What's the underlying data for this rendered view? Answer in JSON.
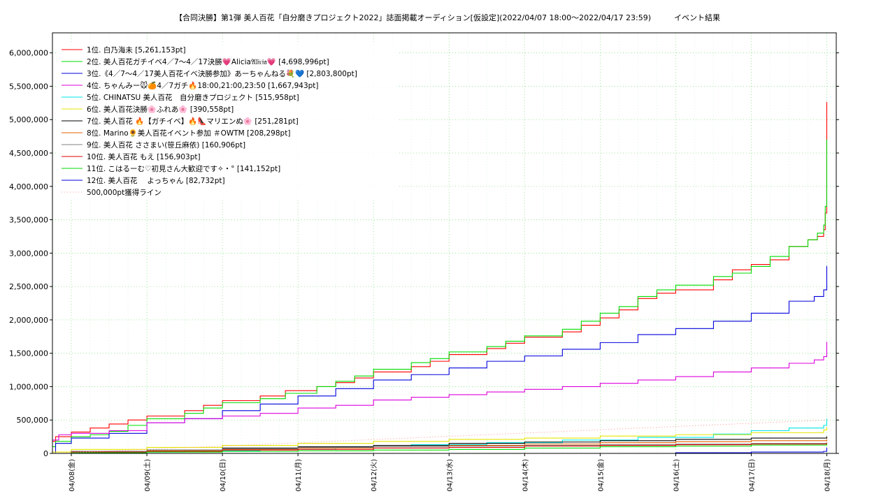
{
  "chart_data": {
    "type": "line",
    "title": "【合同決勝】第1弾 美人百花「自分磨きプロジェクト2022」誌面掲載オーディション[仮設定](2022/04/07 18:00〜2022/04/17 23:59)　　　イベント結果",
    "xlabel": "",
    "ylabel": "",
    "ylim": [
      0,
      6300000
    ],
    "xlim": [
      "04/07 18:00",
      "04/18 03:00"
    ],
    "grid": true,
    "legend_position": "top-left",
    "x_tick_labels": [
      "04/08(金)",
      "04/09(土)",
      "04/10(日)",
      "04/11(月)",
      "04/12(火)",
      "04/13(水)",
      "04/14(木)",
      "04/15(金)",
      "04/16(土)",
      "04/17(日)",
      "04/18(月)"
    ],
    "y_tick_labels": [
      "0",
      "500,000",
      "1,000,000",
      "1,500,000",
      "2,000,000",
      "2,500,000",
      "3,000,000",
      "3,500,000",
      "4,000,000",
      "4,500,000",
      "5,000,000",
      "5,500,000",
      "6,000,000"
    ],
    "y_ticks": [
      0,
      500000,
      1000000,
      1500000,
      2000000,
      2500000,
      3000000,
      3500000,
      4000000,
      4500000,
      5000000,
      5500000,
      6000000
    ],
    "x_days_start": "04/08",
    "series": [
      {
        "name": "1位. 白乃海未 [5,261,153pt]",
        "color": "#ff0000",
        "style": "solid",
        "x": [
          "04/07 18:00",
          "04/07 19:00",
          "04/08 00:00",
          "04/08 06:00",
          "04/08 12:00",
          "04/08 18:00",
          "04/09 00:00",
          "04/09 12:00",
          "04/09 18:00",
          "04/10 00:00",
          "04/10 12:00",
          "04/10 20:00",
          "04/11 06:00",
          "04/11 12:00",
          "04/11 18:00",
          "04/12 00:00",
          "04/12 12:00",
          "04/12 18:00",
          "04/13 00:00",
          "04/13 12:00",
          "04/13 18:00",
          "04/14 00:00",
          "04/14 12:00",
          "04/14 18:00",
          "04/15 00:00",
          "04/15 06:00",
          "04/15 12:00",
          "04/15 18:00",
          "04/16 00:00",
          "04/16 12:00",
          "04/16 18:00",
          "04/17 00:00",
          "04/17 06:00",
          "04/17 12:00",
          "04/17 18:00",
          "04/17 21:00",
          "04/17 23:00",
          "04/17 23:30",
          "04/17 23:59",
          "04/18 00:00"
        ],
        "y": [
          180000,
          250000,
          320000,
          380000,
          440000,
          500000,
          560000,
          640000,
          720000,
          790000,
          860000,
          940000,
          1000000,
          1060000,
          1130000,
          1220000,
          1300000,
          1380000,
          1480000,
          1570000,
          1650000,
          1740000,
          1820000,
          1920000,
          2030000,
          2150000,
          2320000,
          2400000,
          2450000,
          2600000,
          2750000,
          2830000,
          2900000,
          3100000,
          3200000,
          3250000,
          3350000,
          3600000,
          5261153,
          5261153
        ]
      },
      {
        "name": "2位. 美人百花ガチイベ4／7〜4／17決勝💗Alicia𝔄𝔩𝔦𝔠𝔦𝔞💗 [4,698,996pt]",
        "color": "#00dd00",
        "style": "solid",
        "x": [
          "04/07 18:00",
          "04/07 19:00",
          "04/08 00:00",
          "04/08 06:00",
          "04/08 12:00",
          "04/08 18:00",
          "04/09 00:00",
          "04/09 12:00",
          "04/09 18:00",
          "04/10 00:00",
          "04/10 12:00",
          "04/10 20:00",
          "04/11 06:00",
          "04/11 12:00",
          "04/11 18:00",
          "04/12 00:00",
          "04/12 12:00",
          "04/12 18:00",
          "04/13 00:00",
          "04/13 12:00",
          "04/13 18:00",
          "04/14 00:00",
          "04/14 12:00",
          "04/14 18:00",
          "04/15 00:00",
          "04/15 06:00",
          "04/15 12:00",
          "04/15 18:00",
          "04/16 00:00",
          "04/16 12:00",
          "04/16 18:00",
          "04/17 00:00",
          "04/17 06:00",
          "04/17 12:00",
          "04/17 18:00",
          "04/17 21:00",
          "04/17 23:00",
          "04/17 23:30",
          "04/17 23:59",
          "04/18 00:00"
        ],
        "y": [
          100000,
          180000,
          250000,
          280000,
          330000,
          420000,
          520000,
          600000,
          680000,
          760000,
          820000,
          900000,
          1000000,
          1080000,
          1160000,
          1260000,
          1360000,
          1420000,
          1520000,
          1600000,
          1680000,
          1760000,
          1860000,
          1980000,
          2100000,
          2200000,
          2350000,
          2450000,
          2520000,
          2650000,
          2700000,
          2800000,
          2950000,
          3100000,
          3200000,
          3300000,
          3420000,
          3700000,
          4698996,
          4698996
        ]
      },
      {
        "name": "3位.《4／7〜4／17美人百花イベ決勝参加》あーちゃんねる💐💙 [2,803,800pt]",
        "color": "#0000dd",
        "style": "solid",
        "x": [
          "04/07 18:00",
          "04/07 19:00",
          "04/08 00:00",
          "04/08 12:00",
          "04/09 00:00",
          "04/09 12:00",
          "04/10 00:00",
          "04/10 12:00",
          "04/11 00:00",
          "04/11 12:00",
          "04/12 00:00",
          "04/12 12:00",
          "04/13 00:00",
          "04/13 12:00",
          "04/14 00:00",
          "04/14 12:00",
          "04/15 00:00",
          "04/15 12:00",
          "04/16 00:00",
          "04/16 12:00",
          "04/17 00:00",
          "04/17 12:00",
          "04/17 20:00",
          "04/17 23:00",
          "04/17 23:59",
          "04/18 00:00"
        ],
        "y": [
          0,
          150000,
          230000,
          300000,
          460000,
          520000,
          640000,
          740000,
          860000,
          970000,
          1100000,
          1180000,
          1280000,
          1380000,
          1460000,
          1560000,
          1660000,
          1780000,
          1870000,
          1980000,
          2100000,
          2280000,
          2350000,
          2450000,
          2803800,
          2803800
        ]
      },
      {
        "name": "4位. ちゃんみー🐭🍊4／7ガチ🔥18:00,21:00,23:50 [1,667,943pt]",
        "color": "#dd00dd",
        "style": "solid",
        "x": [
          "04/07 18:00",
          "04/07 20:00",
          "04/08 00:00",
          "04/08 12:00",
          "04/09 00:00",
          "04/09 12:00",
          "04/10 00:00",
          "04/10 12:00",
          "04/11 00:00",
          "04/11 12:00",
          "04/12 00:00",
          "04/12 12:00",
          "04/13 00:00",
          "04/13 12:00",
          "04/14 00:00",
          "04/14 12:00",
          "04/15 00:00",
          "04/15 12:00",
          "04/16 00:00",
          "04/16 12:00",
          "04/17 00:00",
          "04/17 12:00",
          "04/17 20:00",
          "04/17 23:00",
          "04/17 23:59",
          "04/18 00:00"
        ],
        "y": [
          200000,
          280000,
          300000,
          340000,
          460000,
          520000,
          560000,
          600000,
          680000,
          720000,
          800000,
          840000,
          880000,
          920000,
          960000,
          1000000,
          1050000,
          1100000,
          1150000,
          1220000,
          1280000,
          1350000,
          1400000,
          1450000,
          1667943,
          1667943
        ]
      },
      {
        "name": "5位. CHINATSU 美人百花　自分磨きプロジェクト [515,958pt]",
        "color": "#00e5e5",
        "style": "solid",
        "x": [
          "04/07 18:00",
          "04/08 12:00",
          "04/09 12:00",
          "04/10 12:00",
          "04/11 12:00",
          "04/12 12:00",
          "04/13 12:00",
          "04/14 12:00",
          "04/15 12:00",
          "04/16 12:00",
          "04/17 00:00",
          "04/17 12:00",
          "04/17 23:00",
          "04/17 23:59",
          "04/18 00:00"
        ],
        "y": [
          0,
          20000,
          40000,
          60000,
          100000,
          130000,
          160000,
          200000,
          240000,
          290000,
          340000,
          380000,
          420000,
          515958,
          515958
        ]
      },
      {
        "name": "6位. 美人百花決勝🌸ふれあ🌸 [390,558pt]",
        "color": "#e5e500",
        "style": "solid",
        "x": [
          "04/07 18:00",
          "04/08 00:00",
          "04/09 00:00",
          "04/10 00:00",
          "04/11 00:00",
          "04/12 00:00",
          "04/13 00:00",
          "04/14 00:00",
          "04/15 00:00",
          "04/16 00:00",
          "04/17 00:00",
          "04/17 23:00",
          "04/17 23:59",
          "04/18 00:00"
        ],
        "y": [
          20000,
          60000,
          90000,
          120000,
          150000,
          180000,
          210000,
          230000,
          260000,
          280000,
          310000,
          350000,
          390558,
          390558
        ]
      },
      {
        "name": "7位. 美人百花 🔥【ガチイベ】🔥👠マリエンぬ🌸 [251,281pt]",
        "color": "#000000",
        "style": "solid",
        "x": [
          "04/07 18:00",
          "04/08 00:00",
          "04/09 00:00",
          "04/10 00:00",
          "04/11 00:00",
          "04/12 00:00",
          "04/13 00:00",
          "04/14 00:00",
          "04/15 00:00",
          "04/16 00:00",
          "04/17 00:00",
          "04/17 23:59",
          "04/18 00:00"
        ],
        "y": [
          0,
          30000,
          50000,
          80000,
          100000,
          120000,
          150000,
          170000,
          190000,
          210000,
          230000,
          251281,
          251281
        ]
      },
      {
        "name": "8位. Marino🌻美人百花イベント参加 ＃OWTM [208,298pt]",
        "color": "#e56000",
        "style": "solid",
        "x": [
          "04/07 18:00",
          "04/08 00:00",
          "04/09 00:00",
          "04/10 00:00",
          "04/11 00:00",
          "04/12 00:00",
          "04/13 00:00",
          "04/14 00:00",
          "04/15 00:00",
          "04/16 00:00",
          "04/17 00:00",
          "04/17 23:59",
          "04/18 00:00"
        ],
        "y": [
          0,
          20000,
          40000,
          60000,
          80000,
          100000,
          120000,
          140000,
          160000,
          175000,
          190000,
          208298,
          208298
        ]
      },
      {
        "name": "9位. 美人百花 ささまい(笹丘麻依) [160,906pt]",
        "color": "#808080",
        "style": "solid",
        "x": [
          "04/07 18:00",
          "04/08 00:00",
          "04/09 00:00",
          "04/10 00:00",
          "04/11 00:00",
          "04/12 00:00",
          "04/13 00:00",
          "04/14 00:00",
          "04/15 00:00",
          "04/16 00:00",
          "04/17 00:00",
          "04/17 23:59",
          "04/18 00:00"
        ],
        "y": [
          0,
          30000,
          50000,
          70000,
          90000,
          100000,
          110000,
          120000,
          130000,
          140000,
          150000,
          160906,
          160906
        ]
      },
      {
        "name": "10位. 美人百花 もえ [156,903pt]",
        "color": "#dd0000",
        "style": "solid",
        "x": [
          "04/07 18:00",
          "04/08 00:00",
          "04/09 00:00",
          "04/10 00:00",
          "04/11 00:00",
          "04/12 00:00",
          "04/13 00:00",
          "04/14 00:00",
          "04/15 00:00",
          "04/16 00:00",
          "04/17 00:00",
          "04/17 23:59",
          "04/18 00:00"
        ],
        "y": [
          0,
          20000,
          30000,
          50000,
          60000,
          80000,
          90000,
          110000,
          120000,
          130000,
          140000,
          156903,
          156903
        ]
      },
      {
        "name": "11位. こはるーむ♡初見さん大歓迎です✧・° [141,152pt]",
        "color": "#00dd00",
        "style": "solid",
        "x": [
          "04/07 18:00",
          "04/08 00:00",
          "04/09 00:00",
          "04/10 00:00",
          "04/11 00:00",
          "04/12 00:00",
          "04/13 00:00",
          "04/14 00:00",
          "04/15 00:00",
          "04/16 00:00",
          "04/17 00:00",
          "04/17 23:59",
          "04/18 00:00"
        ],
        "y": [
          0,
          10000,
          20000,
          30000,
          40000,
          50000,
          60000,
          80000,
          100000,
          110000,
          125000,
          141152,
          141152
        ]
      },
      {
        "name": "12位. 美人百花　 よっちゃん [82,732pt]",
        "color": "#0000dd",
        "style": "solid",
        "x": [
          "04/07 18:00",
          "04/09 00:00",
          "04/10 00:00",
          "04/11 00:00",
          "04/12 00:00",
          "04/13 00:00",
          "04/14 00:00",
          "04/15 00:00",
          "04/16 00:00",
          "04/17 00:00",
          "04/17 23:00",
          "04/17 23:59",
          "04/18 00:00"
        ],
        "y": [
          0,
          0,
          0,
          0,
          0,
          0,
          0,
          0,
          10000,
          20000,
          30000,
          82732,
          82732
        ]
      },
      {
        "name": "500,000pt獲得ライン",
        "color": "#ff9999",
        "style": "dotted",
        "x": [
          "04/07 18:00",
          "04/17 23:59"
        ],
        "y": [
          0,
          500000
        ]
      }
    ]
  }
}
